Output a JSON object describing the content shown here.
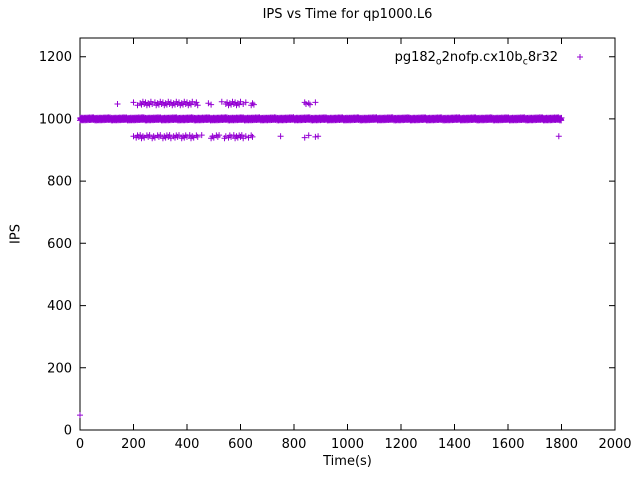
{
  "chart_data": {
    "type": "scatter",
    "title": "IPS vs Time for qp1000.L6",
    "xlabel": "Time(s)",
    "ylabel": "IPS",
    "xlim": [
      0,
      2000
    ],
    "ylim": [
      0,
      1260
    ],
    "xticks": [
      0,
      200,
      400,
      600,
      800,
      1000,
      1200,
      1400,
      1600,
      1800,
      2000
    ],
    "yticks": [
      0,
      200,
      400,
      600,
      800,
      1000,
      1200
    ],
    "grid": false,
    "legend_position": "top-right-inside",
    "marker": "plus",
    "color": "#9400D3",
    "series": [
      {
        "name": "pg182_o2nofp.cx10b_c8r32",
        "band": {
          "x_start": 0,
          "x_end": 1800,
          "y_center": 1000,
          "y_spread": 5,
          "x_step": 1
        },
        "upper_outliers": [
          [
            140,
            1048
          ],
          [
            200,
            1053
          ],
          [
            215,
            1044
          ],
          [
            225,
            1050
          ],
          [
            230,
            1046
          ],
          [
            235,
            1055
          ],
          [
            240,
            1048
          ],
          [
            245,
            1053
          ],
          [
            250,
            1044
          ],
          [
            255,
            1050
          ],
          [
            260,
            1046
          ],
          [
            265,
            1055
          ],
          [
            270,
            1048
          ],
          [
            280,
            1053
          ],
          [
            285,
            1044
          ],
          [
            290,
            1050
          ],
          [
            295,
            1046
          ],
          [
            300,
            1055
          ],
          [
            305,
            1048
          ],
          [
            310,
            1053
          ],
          [
            315,
            1044
          ],
          [
            320,
            1050
          ],
          [
            325,
            1046
          ],
          [
            330,
            1055
          ],
          [
            335,
            1048
          ],
          [
            340,
            1053
          ],
          [
            345,
            1044
          ],
          [
            350,
            1050
          ],
          [
            355,
            1046
          ],
          [
            360,
            1055
          ],
          [
            365,
            1048
          ],
          [
            370,
            1053
          ],
          [
            375,
            1044
          ],
          [
            380,
            1050
          ],
          [
            385,
            1046
          ],
          [
            390,
            1055
          ],
          [
            395,
            1048
          ],
          [
            400,
            1053
          ],
          [
            405,
            1044
          ],
          [
            410,
            1050
          ],
          [
            415,
            1046
          ],
          [
            420,
            1055
          ],
          [
            430,
            1048
          ],
          [
            435,
            1053
          ],
          [
            440,
            1044
          ],
          [
            480,
            1050
          ],
          [
            490,
            1046
          ],
          [
            530,
            1055
          ],
          [
            545,
            1048
          ],
          [
            550,
            1053
          ],
          [
            555,
            1044
          ],
          [
            560,
            1050
          ],
          [
            565,
            1046
          ],
          [
            570,
            1055
          ],
          [
            575,
            1048
          ],
          [
            580,
            1053
          ],
          [
            585,
            1044
          ],
          [
            590,
            1050
          ],
          [
            595,
            1046
          ],
          [
            600,
            1055
          ],
          [
            610,
            1048
          ],
          [
            620,
            1053
          ],
          [
            640,
            1044
          ],
          [
            645,
            1050
          ],
          [
            650,
            1046
          ],
          [
            840,
            1053
          ],
          [
            845,
            1048
          ],
          [
            855,
            1050
          ],
          [
            860,
            1046
          ],
          [
            880,
            1053
          ]
        ],
        "lower_outliers": [
          [
            200,
            944
          ],
          [
            210,
            940
          ],
          [
            215,
            947
          ],
          [
            220,
            942
          ],
          [
            225,
            948
          ],
          [
            230,
            938
          ],
          [
            235,
            944
          ],
          [
            240,
            940
          ],
          [
            250,
            947
          ],
          [
            255,
            942
          ],
          [
            260,
            948
          ],
          [
            270,
            938
          ],
          [
            275,
            944
          ],
          [
            280,
            940
          ],
          [
            290,
            947
          ],
          [
            295,
            942
          ],
          [
            300,
            948
          ],
          [
            310,
            938
          ],
          [
            315,
            944
          ],
          [
            320,
            940
          ],
          [
            325,
            947
          ],
          [
            330,
            942
          ],
          [
            335,
            948
          ],
          [
            340,
            938
          ],
          [
            350,
            944
          ],
          [
            355,
            940
          ],
          [
            360,
            947
          ],
          [
            365,
            942
          ],
          [
            370,
            948
          ],
          [
            380,
            938
          ],
          [
            385,
            944
          ],
          [
            390,
            940
          ],
          [
            395,
            947
          ],
          [
            400,
            942
          ],
          [
            410,
            948
          ],
          [
            415,
            938
          ],
          [
            420,
            944
          ],
          [
            425,
            940
          ],
          [
            435,
            947
          ],
          [
            440,
            942
          ],
          [
            455,
            948
          ],
          [
            490,
            938
          ],
          [
            495,
            944
          ],
          [
            500,
            940
          ],
          [
            510,
            947
          ],
          [
            515,
            942
          ],
          [
            520,
            948
          ],
          [
            540,
            938
          ],
          [
            545,
            944
          ],
          [
            555,
            940
          ],
          [
            560,
            947
          ],
          [
            565,
            942
          ],
          [
            575,
            948
          ],
          [
            580,
            938
          ],
          [
            585,
            944
          ],
          [
            590,
            940
          ],
          [
            595,
            947
          ],
          [
            600,
            942
          ],
          [
            605,
            948
          ],
          [
            610,
            938
          ],
          [
            620,
            944
          ],
          [
            630,
            940
          ],
          [
            640,
            947
          ],
          [
            645,
            942
          ],
          [
            750,
            944
          ],
          [
            840,
            940
          ],
          [
            855,
            947
          ],
          [
            880,
            942
          ],
          [
            890,
            944
          ],
          [
            1790,
            944
          ]
        ],
        "extra_points": [
          [
            0,
            48
          ]
        ]
      }
    ]
  }
}
